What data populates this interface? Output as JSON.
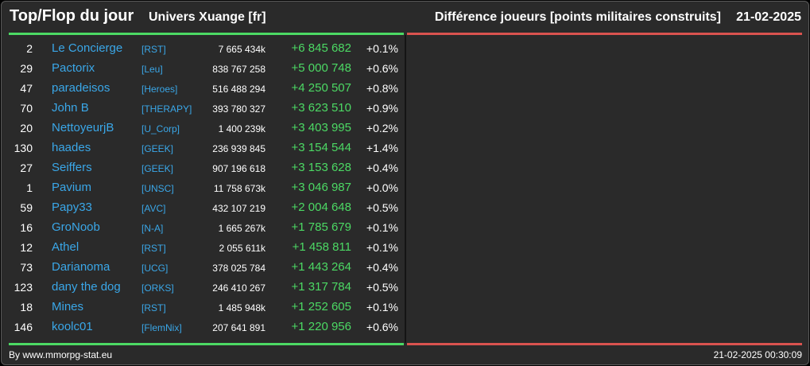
{
  "header": {
    "title": "Top/Flop du jour",
    "universe": "Univers Xuange [fr]",
    "metric": "Différence joueurs [points militaires construits]",
    "date": "21-02-2025"
  },
  "top_rows": [
    {
      "rank": "2",
      "name": "Le Concierge",
      "alliance": "[RST]",
      "points": "7 665 434k",
      "diff": "+6 845 682",
      "pct": "+0.1%"
    },
    {
      "rank": "29",
      "name": "Pactorix",
      "alliance": "[Leu]",
      "points": "838 767 258",
      "diff": "+5 000 748",
      "pct": "+0.6%"
    },
    {
      "rank": "47",
      "name": "paradeisos",
      "alliance": "[Heroes]",
      "points": "516 488 294",
      "diff": "+4 250 507",
      "pct": "+0.8%"
    },
    {
      "rank": "70",
      "name": "John B",
      "alliance": "[THERAPY]",
      "points": "393 780 327",
      "diff": "+3 623 510",
      "pct": "+0.9%"
    },
    {
      "rank": "20",
      "name": "NettoyeurjB",
      "alliance": "[U_Corp]",
      "points": "1 400 239k",
      "diff": "+3 403 995",
      "pct": "+0.2%"
    },
    {
      "rank": "130",
      "name": "haades",
      "alliance": "[GEEK]",
      "points": "236 939 845",
      "diff": "+3 154 544",
      "pct": "+1.4%"
    },
    {
      "rank": "27",
      "name": "Seiffers",
      "alliance": "[GEEK]",
      "points": "907 196 618",
      "diff": "+3 153 628",
      "pct": "+0.4%"
    },
    {
      "rank": "1",
      "name": "Pavium",
      "alliance": "[UNSC]",
      "points": "11 758 673k",
      "diff": "+3 046 987",
      "pct": "+0.0%"
    },
    {
      "rank": "59",
      "name": "Papy33",
      "alliance": "[AVC]",
      "points": "432 107 219",
      "diff": "+2 004 648",
      "pct": "+0.5%"
    },
    {
      "rank": "16",
      "name": "GroNoob",
      "alliance": "[N-A]",
      "points": "1 665 267k",
      "diff": "+1 785 679",
      "pct": "+0.1%"
    },
    {
      "rank": "12",
      "name": "Athel",
      "alliance": "[RST]",
      "points": "2 055 611k",
      "diff": "+1 458 811",
      "pct": "+0.1%"
    },
    {
      "rank": "73",
      "name": "Darianoma",
      "alliance": "[UCG]",
      "points": "378 025 784",
      "diff": "+1 443 264",
      "pct": "+0.4%"
    },
    {
      "rank": "123",
      "name": "dany the dog",
      "alliance": "[ORKS]",
      "points": "246 410 267",
      "diff": "+1 317 784",
      "pct": "+0.5%"
    },
    {
      "rank": "18",
      "name": "Mines",
      "alliance": "[RST]",
      "points": "1 485 948k",
      "diff": "+1 252 605",
      "pct": "+0.1%"
    },
    {
      "rank": "146",
      "name": "koolc01",
      "alliance": "[FlemNix]",
      "points": "207 641 891",
      "diff": "+1 220 956",
      "pct": "+0.6%"
    }
  ],
  "footer": {
    "source": "By www.mmorpg-stat.eu",
    "timestamp": "21-02-2025 00:30:09"
  },
  "colors": {
    "top_accent": "#4cd964",
    "flop_accent": "#d9534f",
    "link": "#3aa7e8",
    "panel_bg": "#2a2a2a"
  }
}
